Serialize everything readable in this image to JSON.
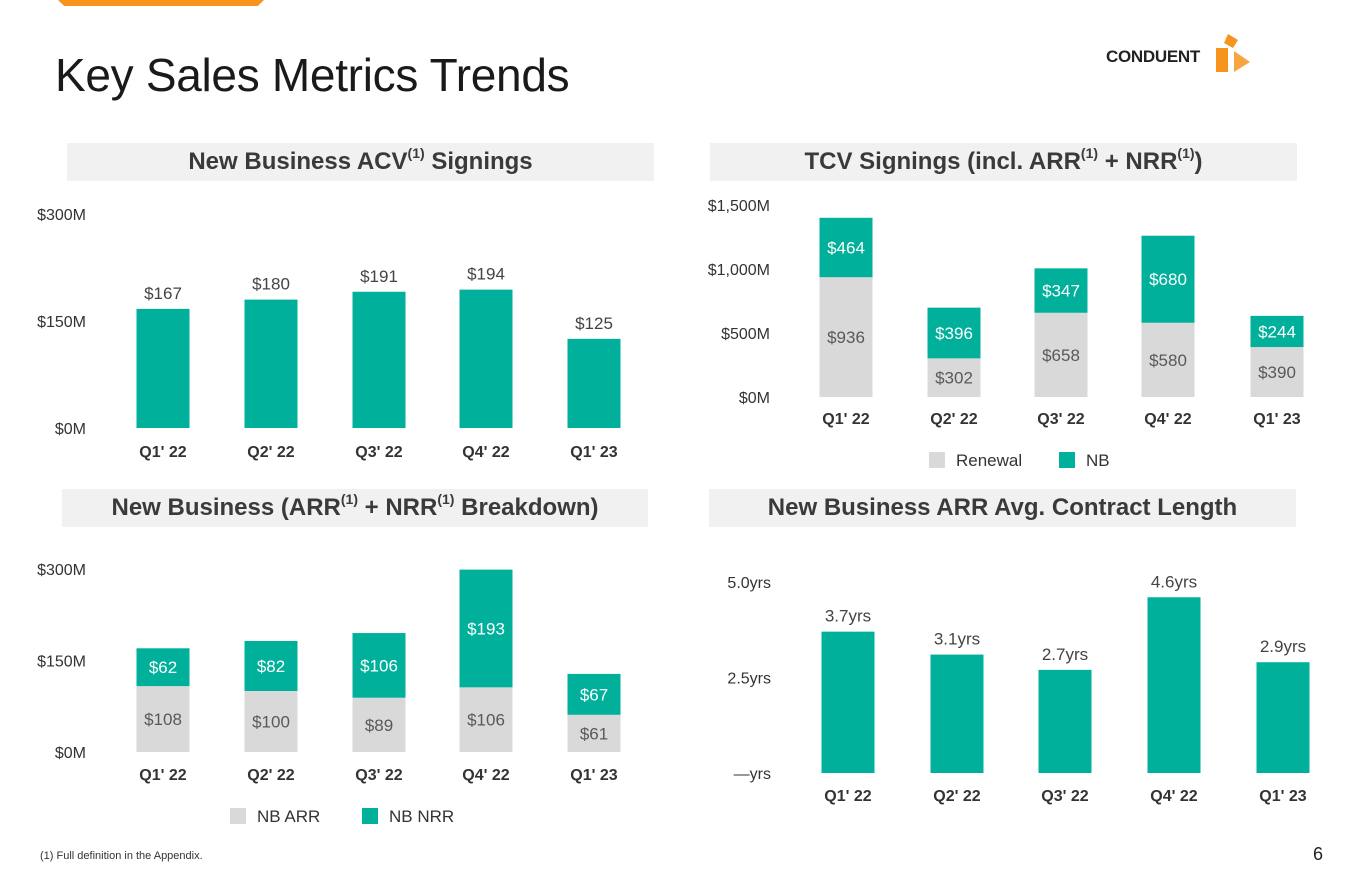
{
  "page": {
    "title": "Key Sales Metrics Trends",
    "logo_text": "CONDUENT",
    "footnote": "(1) Full definition in the Appendix.",
    "page_number": "6"
  },
  "colors": {
    "teal": "#00b09b",
    "gray": "#d9d9d9",
    "orange": "#f7941d",
    "panel_bg": "#f1f1f1"
  },
  "panels": {
    "acv": {
      "title_pre": "New Business ACV",
      "sup1": "(1)",
      "title_post": " Signings"
    },
    "tcv": {
      "title_pre": "TCV Signings (incl. ARR",
      "sup1": "(1)",
      "title_mid": " + NRR",
      "sup2": "(1)",
      "title_post": ")"
    },
    "breakdown": {
      "title_pre": "New Business (ARR",
      "sup1": "(1)",
      "title_mid": " + NRR",
      "sup2": "(1)",
      "title_post": " Breakdown)"
    },
    "length": {
      "title": "New Business ARR Avg. Contract Length"
    }
  },
  "chart_data": [
    {
      "id": "acv",
      "type": "bar",
      "title": "New Business ACV(1) Signings",
      "categories": [
        "Q1' 22",
        "Q2' 22",
        "Q3' 22",
        "Q4' 22",
        "Q1' 23"
      ],
      "values": [
        167,
        180,
        191,
        194,
        125
      ],
      "labels": [
        "$167",
        "$180",
        "$191",
        "$194",
        "$125"
      ],
      "yticks": [
        0,
        150,
        300
      ],
      "yticklabels": [
        "$0M",
        "$150M",
        "$300M"
      ],
      "ylim": [
        0,
        300
      ]
    },
    {
      "id": "tcv",
      "type": "bar",
      "stacked": true,
      "title": "TCV Signings (incl. ARR(1) + NRR(1))",
      "categories": [
        "Q1' 22",
        "Q2' 22",
        "Q3' 22",
        "Q4' 22",
        "Q1' 23"
      ],
      "series": [
        {
          "name": "Renewal",
          "values": [
            936,
            302,
            658,
            580,
            390
          ],
          "labels": [
            "$936",
            "$302",
            "$658",
            "$580",
            "$390"
          ]
        },
        {
          "name": "NB",
          "values": [
            464,
            396,
            347,
            680,
            244
          ],
          "labels": [
            "$464",
            "$396",
            "$347",
            "$680",
            "$244"
          ]
        }
      ],
      "yticks": [
        0,
        500,
        1000,
        1500
      ],
      "yticklabels": [
        "$0M",
        "$500M",
        "$1,000M",
        "$1,500M"
      ],
      "ylim": [
        0,
        1500
      ],
      "legend": [
        "Renewal",
        "NB"
      ]
    },
    {
      "id": "breakdown",
      "type": "bar",
      "stacked": true,
      "title": "New Business (ARR(1) + NRR(1) Breakdown)",
      "categories": [
        "Q1' 22",
        "Q2' 22",
        "Q3' 22",
        "Q4' 22",
        "Q1' 23"
      ],
      "series": [
        {
          "name": "NB ARR",
          "values": [
            108,
            100,
            89,
            106,
            61
          ],
          "labels": [
            "$108",
            "$100",
            "$89",
            "$106",
            "$61"
          ]
        },
        {
          "name": "NB NRR",
          "values": [
            62,
            82,
            106,
            193,
            67
          ],
          "labels": [
            "$62",
            "$82",
            "$106",
            "$193",
            "$67"
          ]
        }
      ],
      "yticks": [
        0,
        150,
        300
      ],
      "yticklabels": [
        "$0M",
        "$150M",
        "$300M"
      ],
      "ylim": [
        0,
        300
      ],
      "legend": [
        "NB ARR",
        "NB NRR"
      ]
    },
    {
      "id": "length",
      "type": "bar",
      "title": "New Business ARR Avg. Contract Length",
      "categories": [
        "Q1' 22",
        "Q2' 22",
        "Q3' 22",
        "Q4' 22",
        "Q1' 23"
      ],
      "values": [
        3.7,
        3.1,
        2.7,
        4.6,
        2.9
      ],
      "labels": [
        "3.7yrs",
        "3.1yrs",
        "2.7yrs",
        "4.6yrs",
        "2.9yrs"
      ],
      "yticks": [
        0,
        2.5,
        5.0
      ],
      "yticklabels": [
        "—yrs",
        "2.5yrs",
        "5.0yrs"
      ],
      "ylim": [
        0,
        5
      ]
    }
  ]
}
